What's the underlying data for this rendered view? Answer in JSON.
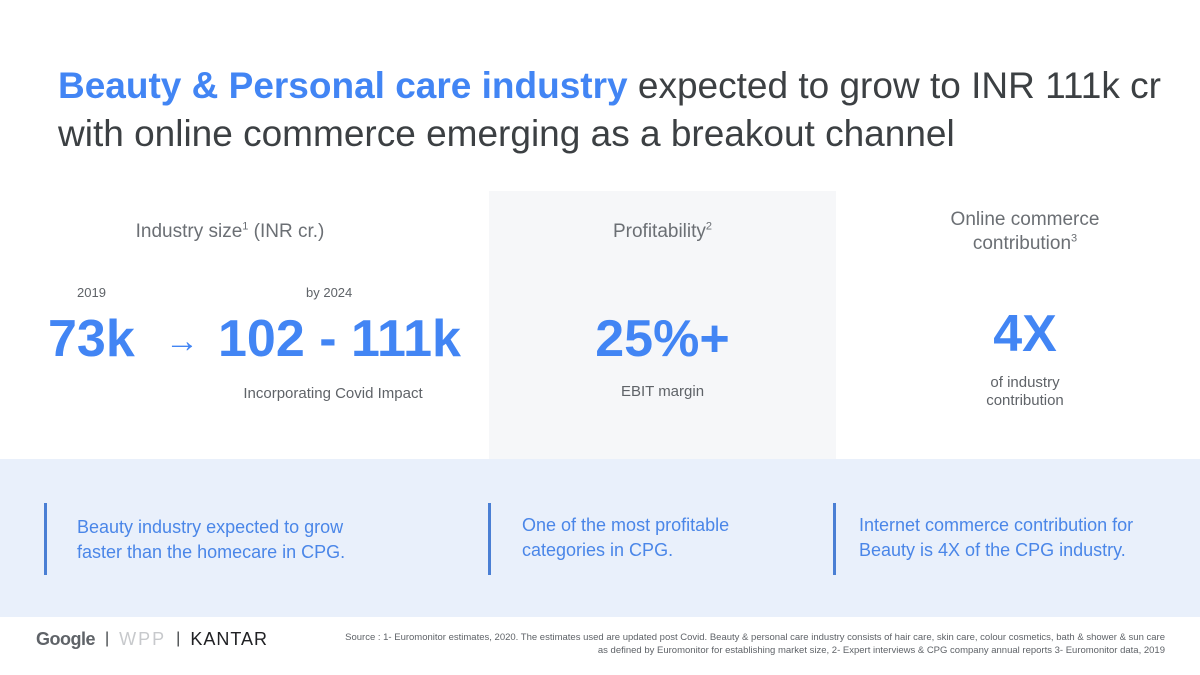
{
  "title": {
    "highlight": "Beauty & Personal care industry",
    "rest": " expected to grow to INR 111k cr with online commerce emerging as a breakout channel"
  },
  "columns": {
    "industry": {
      "heading": "Industry size",
      "heading_sup": "1",
      "heading_unit": " (INR cr.)",
      "year_from": "2019",
      "year_to": "by 2024",
      "value_from": "73k",
      "arrow": "→",
      "value_to": "102 - 111k",
      "note": "Incorporating Covid Impact"
    },
    "profitability": {
      "heading": "Profitability",
      "heading_sup": "2",
      "value": "25%+",
      "note": "EBIT margin"
    },
    "online": {
      "heading_line1": "Online commerce",
      "heading_line2": "contribution",
      "heading_sup": "3",
      "value": "4X",
      "note_line1": "of industry",
      "note_line2": "contribution"
    }
  },
  "callouts": [
    {
      "text": "Beauty industry expected to grow faster than the homecare in CPG."
    },
    {
      "text": "One of the most profitable categories in CPG."
    },
    {
      "text": "Internet commerce contribution for Beauty is 4X of the CPG industry."
    }
  ],
  "footer": {
    "logos": {
      "google": "Google",
      "wpp": "WPP",
      "kantar": "KANTAR",
      "separator": "|"
    },
    "source_line1": "Source : 1- Euromonitor estimates, 2020. The estimates used are updated post Covid. Beauty & personal care industry consists of hair care, skin care, colour cosmetics, bath & shower & sun care",
    "source_line2": "as defined by Euromonitor for establishing market size, 2- Expert interviews & CPG company annual reports 3- Euromonitor data, 2019"
  },
  "colors": {
    "accent": "#4285f4",
    "callout_text": "#4a86e8",
    "band": "#e9f0fb",
    "title_text": "#3c4043"
  }
}
